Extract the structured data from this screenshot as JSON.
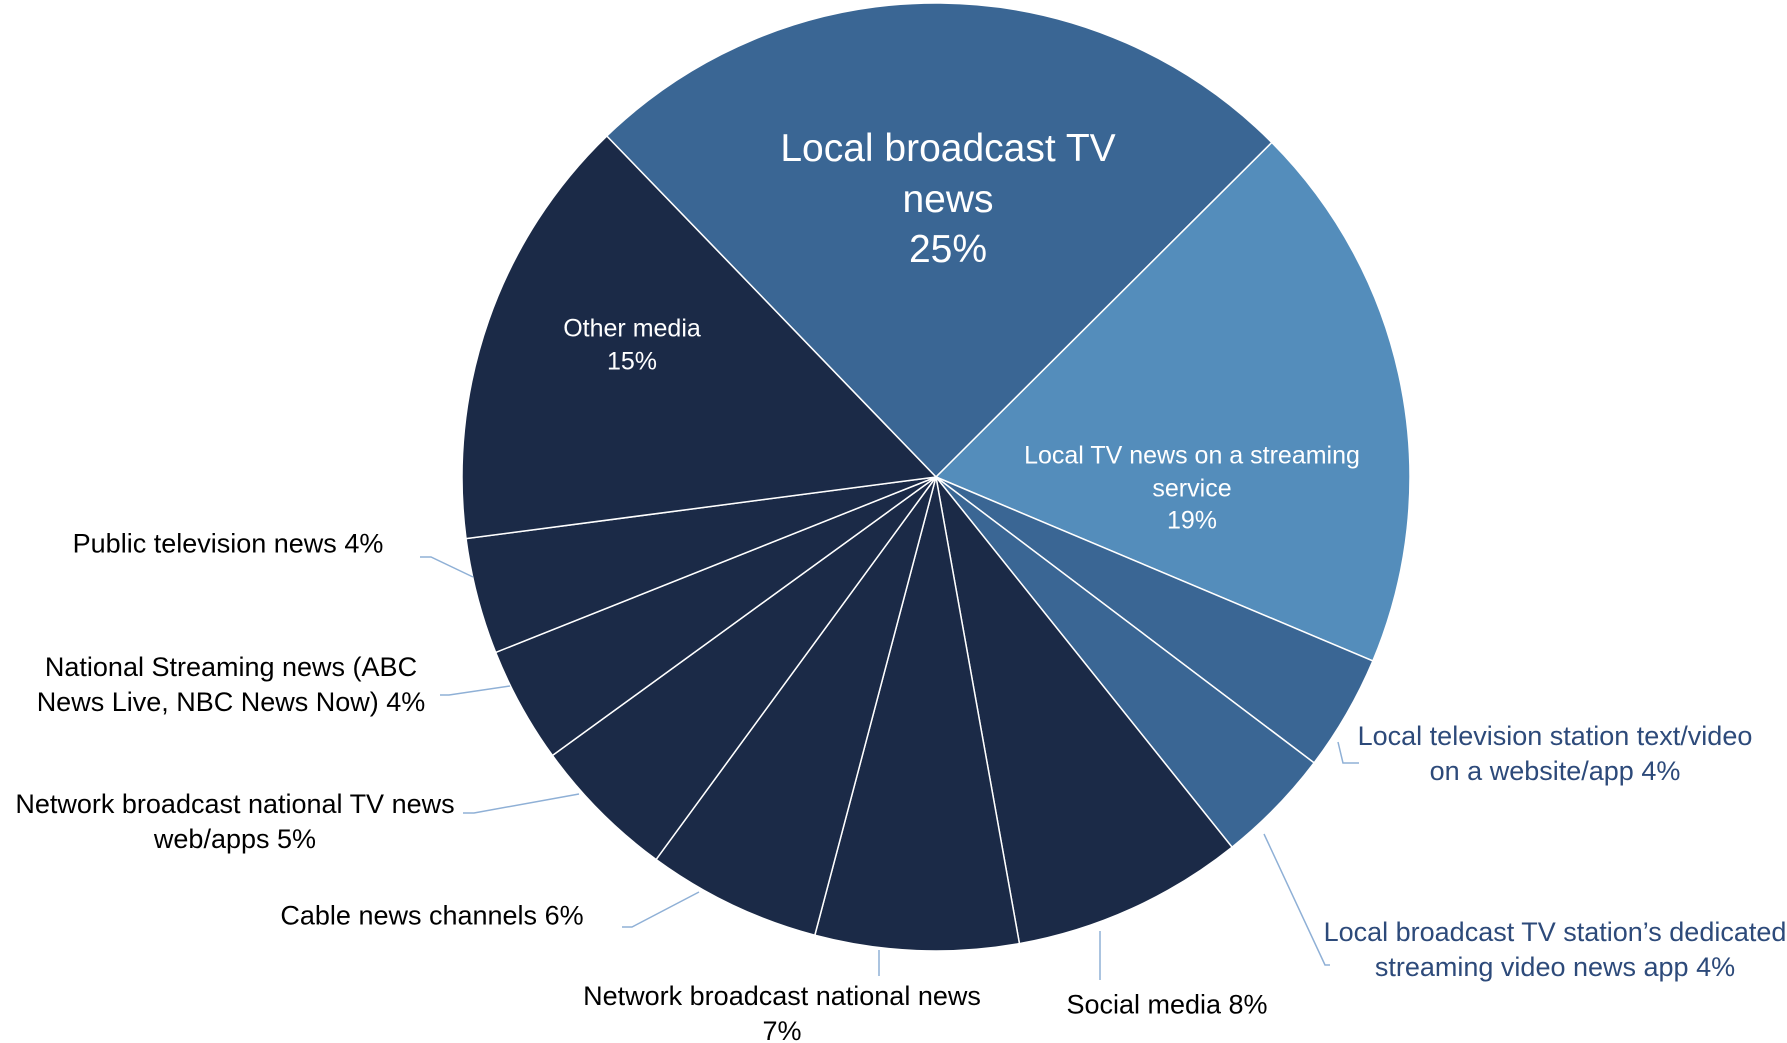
{
  "chart_data": {
    "type": "pie",
    "categories": [
      "Local broadcast TV news",
      "Local TV news on a streaming service",
      "Local television station text/video on a website/app",
      "Local broadcast TV station’s dedicated streaming video news app",
      "Social media",
      "Network broadcast national news",
      "Cable news channels",
      "Network broadcast national TV news web/apps",
      "National Streaming news (ABC News Live, NBC News Now)",
      "Public television news",
      "Other media"
    ],
    "values": [
      25,
      19,
      4,
      4,
      8,
      7,
      6,
      5,
      4,
      4,
      15
    ],
    "value_labels": [
      "25%",
      "19%",
      "4%",
      "4%",
      "8%",
      "7%",
      "6%",
      "5%",
      "4%",
      "4%",
      "15%"
    ],
    "colors": [
      "#3a6694",
      "#548dbb",
      "#3a6694",
      "#3a6694",
      "#1b2a47",
      "#1b2a47",
      "#1b2a47",
      "#1b2a47",
      "#1b2a47",
      "#1b2a47",
      "#1b2a47"
    ]
  }
}
